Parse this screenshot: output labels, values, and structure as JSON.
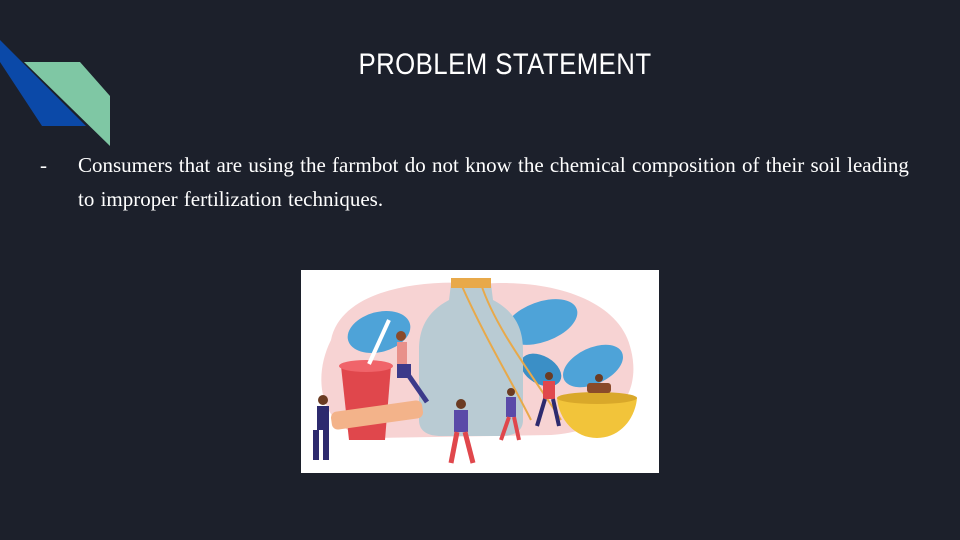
{
  "slide": {
    "title": "PROBLEM STATEMENT",
    "bullets": [
      {
        "marker": "-",
        "text": "Consumers that are using the farmbot do not know the chemical composition of their soil leading to improper fertilization techniques."
      }
    ],
    "image": {
      "icon": "fertilizer-illustration"
    }
  },
  "colors": {
    "background": "#1c202b",
    "text": "#ffffff",
    "accent_blue": "#0b49a8",
    "accent_green": "#7fc7a4"
  }
}
